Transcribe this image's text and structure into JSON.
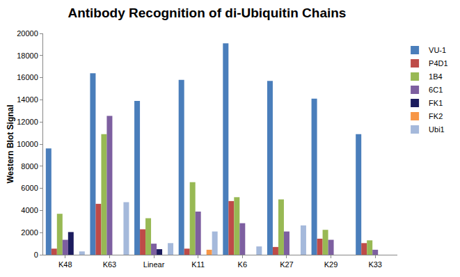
{
  "chart_data": {
    "type": "bar",
    "title": "Antibody Recognition of di-Ubiquitin Chains",
    "y_label": "Western Blot Signal",
    "categories": [
      "K48",
      "K63",
      "Linear",
      "K11",
      "K6",
      "K27",
      "K29",
      "K33"
    ],
    "series": [
      {
        "name": "VU-1",
        "color": "#4a7ebb",
        "values": [
          9600,
          16400,
          13900,
          15800,
          19100,
          15700,
          14100,
          10900
        ]
      },
      {
        "name": "P4D1",
        "color": "#be4b48",
        "values": [
          550,
          4600,
          2300,
          550,
          4850,
          700,
          1450,
          1050
        ]
      },
      {
        "name": "1B4",
        "color": "#98b954",
        "values": [
          3700,
          10900,
          3300,
          6550,
          5200,
          5000,
          2250,
          1300
        ]
      },
      {
        "name": "6C1",
        "color": "#7d5fa0",
        "values": [
          1350,
          12550,
          1000,
          3900,
          2850,
          2100,
          1350,
          450
        ]
      },
      {
        "name": "FK1",
        "color": "#1c1c5e",
        "values": [
          2050,
          0,
          500,
          0,
          0,
          0,
          0,
          0
        ]
      },
      {
        "name": "FK2",
        "color": "#f79646",
        "values": [
          0,
          0,
          0,
          450,
          0,
          0,
          0,
          0
        ]
      },
      {
        "name": "Ubi1",
        "color": "#a5b9db",
        "values": [
          300,
          4750,
          1050,
          2100,
          750,
          2650,
          0,
          0
        ]
      }
    ],
    "ylim": [
      0,
      20000
    ],
    "yticks": [
      0,
      2000,
      4000,
      6000,
      8000,
      10000,
      12000,
      14000,
      16000,
      18000,
      20000
    ],
    "grid": false,
    "legend": "right"
  }
}
